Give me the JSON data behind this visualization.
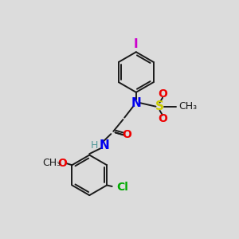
{
  "bg_color": "#dcdcdc",
  "bond_color": "#1a1a1a",
  "N_color": "#0000ee",
  "O_color": "#ee0000",
  "S_color": "#cccc00",
  "Cl_color": "#00aa00",
  "I_color": "#cc00cc",
  "lw": 1.4,
  "ring_r": 0.85,
  "figsize": [
    3.0,
    3.0
  ],
  "dpi": 100,
  "xlim": [
    0,
    10
  ],
  "ylim": [
    0,
    10
  ]
}
